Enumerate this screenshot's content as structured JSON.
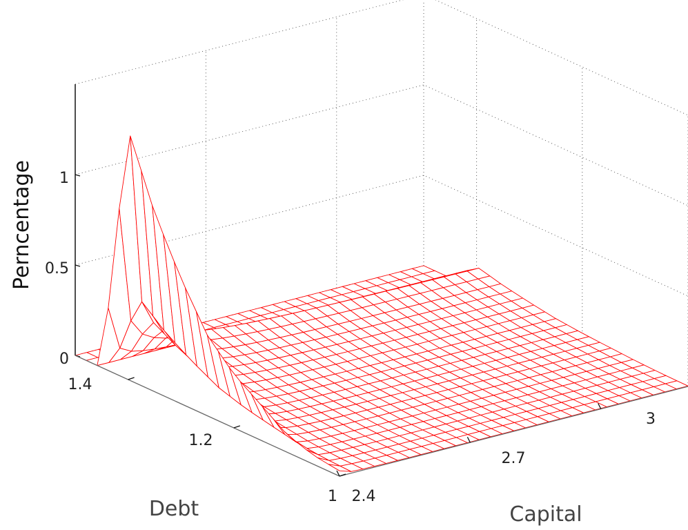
{
  "chart_data": {
    "type": "surface",
    "xlabel": "Debt",
    "ylabel": "Capital",
    "zlabel": "Perncentage",
    "xlim": [
      1.0,
      1.5
    ],
    "ylim": [
      2.4,
      3.2
    ],
    "zlim": [
      0,
      1.5
    ],
    "x_ticks": [
      "1",
      "1.2",
      "1.4"
    ],
    "x_tick_values": [
      1.0,
      1.2,
      1.4
    ],
    "y_ticks": [
      "2.4",
      "2.7",
      "3"
    ],
    "y_tick_values": [
      2.4,
      2.7,
      3.0
    ],
    "z_ticks": [
      "0",
      "0.5",
      "1"
    ],
    "z_tick_values": [
      0,
      0.5,
      1
    ],
    "grid": true,
    "mesh_color": "#ff0000",
    "surface_shape": "sharp ridge along the low-Capital edge rising toward high Debt, decaying toward higher Capital",
    "ridge_profile": {
      "debt": [
        1.0,
        1.05,
        1.1,
        1.15,
        1.2,
        1.25,
        1.3,
        1.35,
        1.4,
        1.45,
        1.5
      ],
      "peak": [
        0.03,
        0.05,
        0.1,
        0.2,
        0.3,
        0.45,
        0.7,
        1.0,
        1.4,
        0.0,
        0.0
      ]
    }
  },
  "axis_text": {
    "x_label": "Debt",
    "y_label": "Capital",
    "z_label": "Perncentage",
    "x_ticks": [
      "1",
      "1.2",
      "1.4"
    ],
    "y_ticks": [
      "2.4",
      "2.7",
      "3"
    ],
    "z_ticks": [
      "0",
      "0.5",
      "1"
    ]
  },
  "colors": {
    "mesh": "#ff0000",
    "fill": "#ffffff",
    "axis": "#111111",
    "grid": "#555555"
  }
}
